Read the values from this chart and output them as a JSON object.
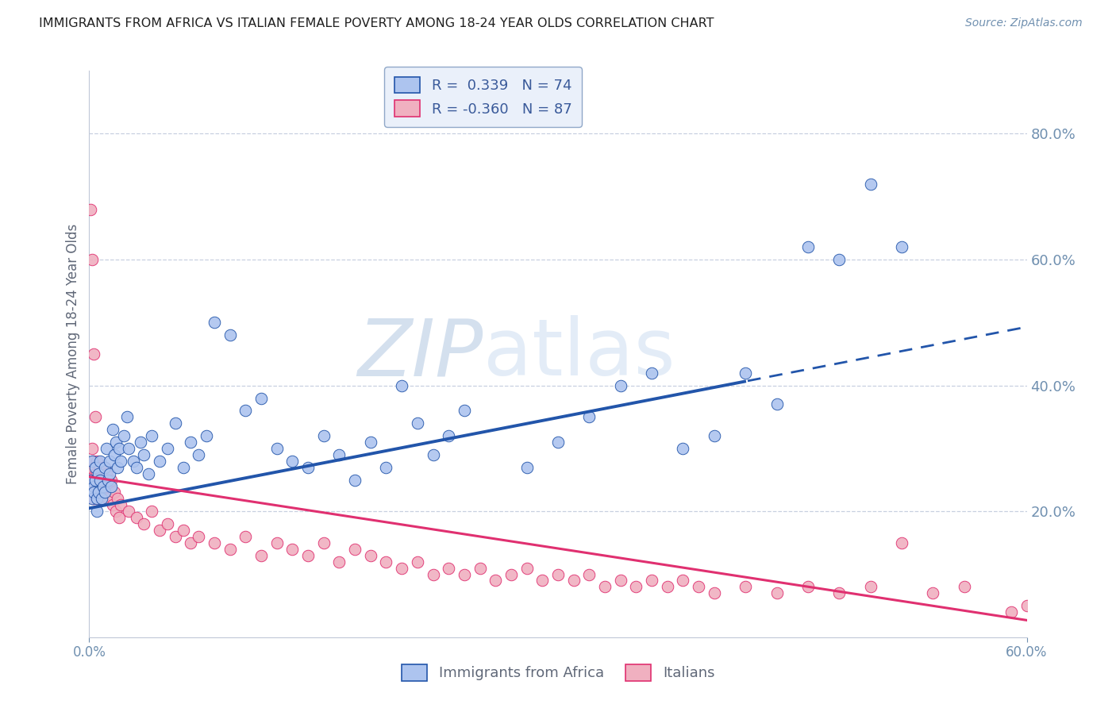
{
  "title": "IMMIGRANTS FROM AFRICA VS ITALIAN FEMALE POVERTY AMONG 18-24 YEAR OLDS CORRELATION CHART",
  "source": "Source: ZipAtlas.com",
  "ylabel": "Female Poverty Among 18-24 Year Olds",
  "xlim": [
    0.0,
    0.6
  ],
  "ylim": [
    0.0,
    0.9
  ],
  "yticks_right": [
    0.2,
    0.4,
    0.6,
    0.8
  ],
  "ytick_labels_right": [
    "20.0%",
    "40.0%",
    "60.0%",
    "80.0%"
  ],
  "xticks": [
    0.0,
    0.6
  ],
  "xtick_labels": [
    "0.0%",
    "60.0%"
  ],
  "series1": {
    "label": "Immigrants from Africa",
    "color": "#adc4ef",
    "R": 0.339,
    "N": 74,
    "line_color": "#2255aa",
    "x": [
      0.001,
      0.002,
      0.002,
      0.003,
      0.003,
      0.004,
      0.004,
      0.005,
      0.005,
      0.006,
      0.006,
      0.007,
      0.007,
      0.008,
      0.009,
      0.01,
      0.01,
      0.011,
      0.012,
      0.013,
      0.013,
      0.014,
      0.015,
      0.016,
      0.017,
      0.018,
      0.019,
      0.02,
      0.022,
      0.024,
      0.025,
      0.028,
      0.03,
      0.033,
      0.035,
      0.038,
      0.04,
      0.045,
      0.05,
      0.055,
      0.06,
      0.065,
      0.07,
      0.075,
      0.08,
      0.09,
      0.1,
      0.11,
      0.12,
      0.13,
      0.14,
      0.15,
      0.16,
      0.17,
      0.18,
      0.19,
      0.2,
      0.21,
      0.22,
      0.23,
      0.24,
      0.28,
      0.3,
      0.32,
      0.34,
      0.36,
      0.38,
      0.4,
      0.42,
      0.44,
      0.46,
      0.48,
      0.5,
      0.52
    ],
    "y": [
      0.25,
      0.22,
      0.28,
      0.24,
      0.23,
      0.27,
      0.25,
      0.22,
      0.2,
      0.26,
      0.23,
      0.28,
      0.25,
      0.22,
      0.24,
      0.27,
      0.23,
      0.3,
      0.25,
      0.28,
      0.26,
      0.24,
      0.33,
      0.29,
      0.31,
      0.27,
      0.3,
      0.28,
      0.32,
      0.35,
      0.3,
      0.28,
      0.27,
      0.31,
      0.29,
      0.26,
      0.32,
      0.28,
      0.3,
      0.34,
      0.27,
      0.31,
      0.29,
      0.32,
      0.5,
      0.48,
      0.36,
      0.38,
      0.3,
      0.28,
      0.27,
      0.32,
      0.29,
      0.25,
      0.31,
      0.27,
      0.4,
      0.34,
      0.29,
      0.32,
      0.36,
      0.27,
      0.31,
      0.35,
      0.4,
      0.42,
      0.3,
      0.32,
      0.42,
      0.37,
      0.62,
      0.6,
      0.72,
      0.62
    ]
  },
  "series2": {
    "label": "Italians",
    "color": "#f0b0c0",
    "R": -0.36,
    "N": 87,
    "line_color": "#e03070",
    "x": [
      0.001,
      0.002,
      0.002,
      0.003,
      0.003,
      0.004,
      0.004,
      0.005,
      0.005,
      0.006,
      0.006,
      0.007,
      0.007,
      0.008,
      0.008,
      0.009,
      0.009,
      0.01,
      0.01,
      0.011,
      0.012,
      0.013,
      0.014,
      0.015,
      0.016,
      0.017,
      0.018,
      0.019,
      0.02,
      0.025,
      0.03,
      0.035,
      0.04,
      0.045,
      0.05,
      0.055,
      0.06,
      0.065,
      0.07,
      0.08,
      0.09,
      0.1,
      0.11,
      0.12,
      0.13,
      0.14,
      0.15,
      0.16,
      0.17,
      0.18,
      0.19,
      0.2,
      0.21,
      0.22,
      0.23,
      0.24,
      0.25,
      0.26,
      0.27,
      0.28,
      0.29,
      0.3,
      0.31,
      0.32,
      0.33,
      0.34,
      0.35,
      0.36,
      0.37,
      0.38,
      0.39,
      0.4,
      0.42,
      0.44,
      0.46,
      0.48,
      0.5,
      0.52,
      0.54,
      0.56,
      0.001,
      0.002,
      0.003,
      0.004,
      0.005,
      0.59,
      0.6
    ],
    "y": [
      0.27,
      0.3,
      0.25,
      0.28,
      0.22,
      0.26,
      0.24,
      0.28,
      0.26,
      0.25,
      0.23,
      0.27,
      0.24,
      0.26,
      0.22,
      0.25,
      0.23,
      0.27,
      0.24,
      0.26,
      0.22,
      0.24,
      0.25,
      0.21,
      0.23,
      0.2,
      0.22,
      0.19,
      0.21,
      0.2,
      0.19,
      0.18,
      0.2,
      0.17,
      0.18,
      0.16,
      0.17,
      0.15,
      0.16,
      0.15,
      0.14,
      0.16,
      0.13,
      0.15,
      0.14,
      0.13,
      0.15,
      0.12,
      0.14,
      0.13,
      0.12,
      0.11,
      0.12,
      0.1,
      0.11,
      0.1,
      0.11,
      0.09,
      0.1,
      0.11,
      0.09,
      0.1,
      0.09,
      0.1,
      0.08,
      0.09,
      0.08,
      0.09,
      0.08,
      0.09,
      0.08,
      0.07,
      0.08,
      0.07,
      0.08,
      0.07,
      0.08,
      0.15,
      0.07,
      0.08,
      0.68,
      0.6,
      0.45,
      0.35,
      0.22,
      0.04,
      0.05
    ]
  },
  "trend1_x_solid_end": 0.42,
  "trend1_intercept": 0.205,
  "trend1_slope": 0.48,
  "trend2_intercept": 0.255,
  "trend2_slope": -0.38,
  "watermark_zip": "ZIP",
  "watermark_atlas": "atlas",
  "watermark_color": "#ccd8ee",
  "legend_box_color": "#eaf0fa",
  "legend_border_color": "#90a8c8",
  "grid_color": "#c8d0e0",
  "axis_color": "#7090b0",
  "title_color": "#202020",
  "background_color": "#ffffff"
}
